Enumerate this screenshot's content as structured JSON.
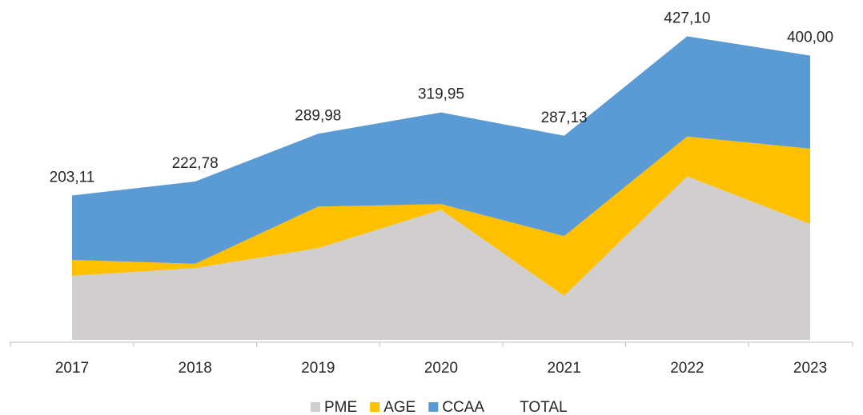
{
  "chart_data": {
    "type": "stacked_area",
    "categories": [
      "2017",
      "2018",
      "2019",
      "2020",
      "2021",
      "2022",
      "2023"
    ],
    "series": [
      {
        "name": "PME",
        "color": "#d0cece",
        "values": [
          90,
          101,
          129,
          183,
          62,
          230,
          163
        ]
      },
      {
        "name": "AGE",
        "color": "#ffc000",
        "values": [
          22.5,
          6,
          58.4,
          8,
          84,
          56,
          106
        ]
      },
      {
        "name": "CCAA",
        "color": "#5b9bd5",
        "values": [
          90.61,
          115.78,
          102.58,
          128.95,
          141.13,
          141.1,
          131
        ]
      },
      {
        "name": "TOTAL",
        "values": [
          203.11,
          222.78,
          289.98,
          319.95,
          287.13,
          427.1,
          400.0
        ],
        "value_labels": [
          "203,11",
          "222,78",
          "289,98",
          "319,95",
          "287,13",
          "427,10",
          "400,00"
        ]
      }
    ],
    "ylim": [
      0,
      450
    ],
    "legend": "bottom"
  }
}
